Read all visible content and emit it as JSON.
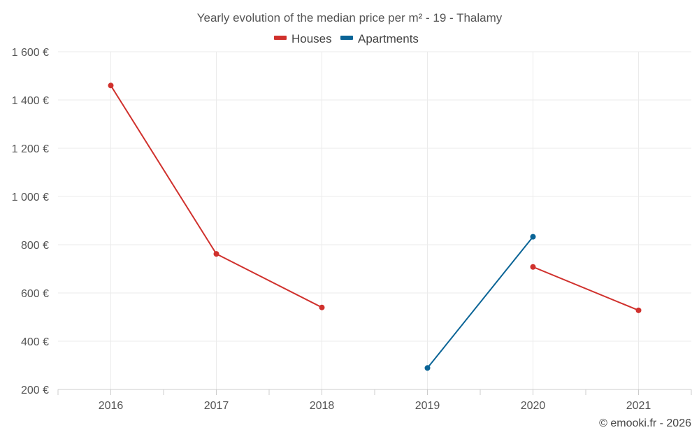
{
  "colors": {
    "houses": "#d0312d",
    "apartments": "#0a6496"
  },
  "credit": "© emooki.fr - 2026",
  "chart_data": {
    "type": "line",
    "title": "Yearly evolution of the median price per m² - 19 - Thalamy",
    "categories": [
      "2016",
      "2017",
      "2018",
      "2019",
      "2020",
      "2021"
    ],
    "y_tick_labels": [
      "200 €",
      "400 €",
      "600 €",
      "800 €",
      "1 000 €",
      "1 200 €",
      "1 400 €",
      "1 600 €"
    ],
    "y_ticks": [
      200,
      400,
      600,
      800,
      1000,
      1200,
      1400,
      1600
    ],
    "ylim": [
      200,
      1600
    ],
    "grid": true,
    "legend": "top-center",
    "series": [
      {
        "name": "Houses",
        "color_key": "houses",
        "segments": [
          [
            {
              "x": "2016",
              "y": 1460
            },
            {
              "x": "2017",
              "y": 762
            },
            {
              "x": "2018",
              "y": 540
            }
          ],
          [
            {
              "x": "2020",
              "y": 708
            },
            {
              "x": "2021",
              "y": 528
            }
          ]
        ]
      },
      {
        "name": "Apartments",
        "color_key": "apartments",
        "segments": [
          [
            {
              "x": "2019",
              "y": 289
            },
            {
              "x": "2020",
              "y": 833
            }
          ]
        ]
      }
    ]
  }
}
